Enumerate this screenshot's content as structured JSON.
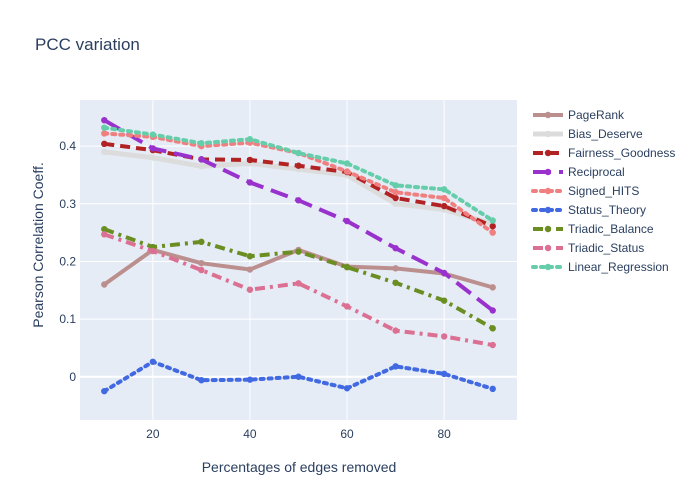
{
  "chart_data": {
    "type": "line",
    "title": "PCC variation",
    "xlabel": "Percentages of edges removed",
    "ylabel": "Pearson Correlation Coeff.",
    "xlim": [
      5,
      95
    ],
    "ylim": [
      -0.075,
      0.48
    ],
    "xticks": [
      20,
      40,
      60,
      80
    ],
    "yticks": [
      0,
      0.1,
      0.2,
      0.3,
      0.4
    ],
    "grid": true,
    "legend_position": "right",
    "x": [
      10,
      20,
      30,
      40,
      50,
      60,
      70,
      80,
      90
    ],
    "series": [
      {
        "name": "PageRank",
        "color": "#bc8f8f",
        "dash": "solid",
        "width": 4,
        "values": [
          0.16,
          0.22,
          0.197,
          0.186,
          0.22,
          0.191,
          0.188,
          0.179,
          0.155
        ]
      },
      {
        "name": "Bias_Deserve",
        "color": "#dcdcdc",
        "dash": "solid",
        "width": 5,
        "values": [
          0.39,
          0.38,
          0.365,
          0.37,
          0.36,
          0.35,
          0.3,
          0.29,
          0.265
        ]
      },
      {
        "name": "Fairness_Goodness",
        "color": "#b22222",
        "dash": "dash",
        "width": 4,
        "values": [
          0.404,
          0.393,
          0.377,
          0.376,
          0.366,
          0.355,
          0.31,
          0.296,
          0.261
        ]
      },
      {
        "name": "Reciprocal",
        "color": "#9932cc",
        "dash": "longdash",
        "width": 4,
        "values": [
          0.445,
          0.396,
          0.377,
          0.337,
          0.306,
          0.27,
          0.223,
          0.18,
          0.115
        ]
      },
      {
        "name": "Signed_HITS",
        "color": "#f08080",
        "dash": "dot",
        "width": 4,
        "values": [
          0.422,
          0.416,
          0.4,
          0.406,
          0.388,
          0.356,
          0.32,
          0.31,
          0.25
        ]
      },
      {
        "name": "Status_Theory",
        "color": "#4169e1",
        "dash": "dot",
        "width": 4,
        "values": [
          -0.025,
          0.026,
          -0.006,
          -0.005,
          0.0,
          -0.02,
          0.018,
          0.005,
          -0.021
        ]
      },
      {
        "name": "Triadic_Balance",
        "color": "#6b8e23",
        "dash": "dashdot",
        "width": 4,
        "values": [
          0.256,
          0.225,
          0.234,
          0.209,
          0.217,
          0.19,
          0.163,
          0.132,
          0.084
        ]
      },
      {
        "name": "Triadic_Status",
        "color": "#db7093",
        "dash": "dashdot",
        "width": 4,
        "values": [
          0.247,
          0.218,
          0.185,
          0.151,
          0.162,
          0.122,
          0.08,
          0.07,
          0.055
        ]
      },
      {
        "name": "Linear_Regression",
        "color": "#66cdaa",
        "dash": "dot",
        "width": 4,
        "values": [
          0.432,
          0.42,
          0.405,
          0.412,
          0.388,
          0.37,
          0.332,
          0.325,
          0.271
        ]
      }
    ]
  }
}
